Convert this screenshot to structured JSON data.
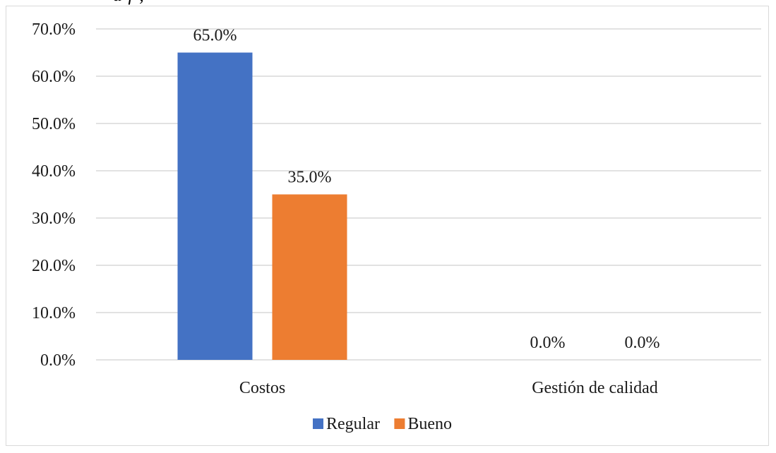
{
  "partial_caption": "a    f                    ,",
  "chart_data": {
    "type": "bar",
    "categories": [
      "Costos",
      "Gestión de calidad"
    ],
    "series": [
      {
        "name": "Regular",
        "values": [
          65.0,
          0.0
        ],
        "color": "#4472c4"
      },
      {
        "name": "Bueno",
        "values": [
          35.0,
          0.0
        ],
        "color": "#ed7d31"
      }
    ],
    "data_labels": [
      [
        "65.0%",
        "0.0%"
      ],
      [
        "35.0%",
        "0.0%"
      ]
    ],
    "y_ticks": [
      "0.0%",
      "10.0%",
      "20.0%",
      "30.0%",
      "40.0%",
      "50.0%",
      "60.0%",
      "70.0%"
    ],
    "ylim": [
      0,
      70
    ],
    "grid": true,
    "gridline_color": "#d9d9d9",
    "legend_position": "bottom",
    "title": "",
    "xlabel": "",
    "ylabel": ""
  }
}
